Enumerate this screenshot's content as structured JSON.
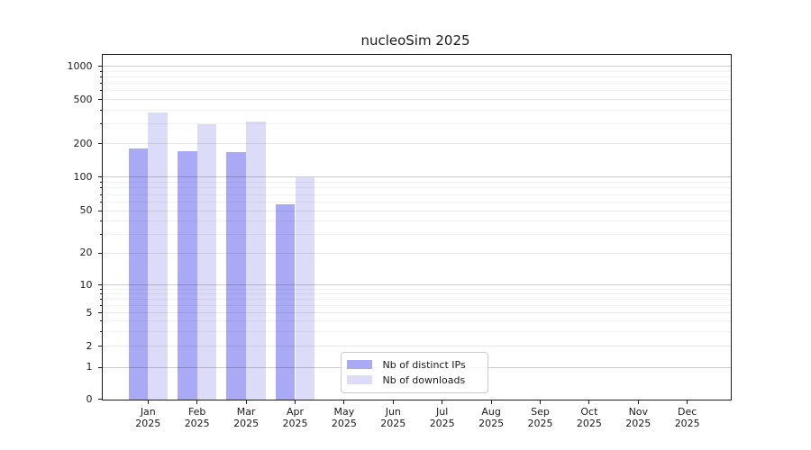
{
  "chart_data": {
    "type": "bar",
    "title": "nucleoSim 2025",
    "categories": [
      "Jan",
      "Feb",
      "Mar",
      "Apr",
      "May",
      "Jun",
      "Jul",
      "Aug",
      "Sep",
      "Oct",
      "Nov",
      "Dec"
    ],
    "year_suffix": "2025",
    "series": [
      {
        "name": "Nb of distinct IPs",
        "color": "#a9a9f6",
        "values": [
          180,
          170,
          167,
          57,
          0,
          0,
          0,
          0,
          0,
          0,
          0,
          0
        ]
      },
      {
        "name": "Nb of downloads",
        "color": "#dcdcf8",
        "values": [
          380,
          300,
          315,
          100,
          0,
          0,
          0,
          0,
          0,
          0,
          0,
          0
        ]
      }
    ],
    "yscale": "symlog",
    "yticks": [
      0,
      1,
      2,
      5,
      10,
      20,
      50,
      100,
      200,
      500,
      1000
    ],
    "ylim": [
      0,
      1270
    ],
    "grid": true,
    "legend_position": "lower center"
  }
}
